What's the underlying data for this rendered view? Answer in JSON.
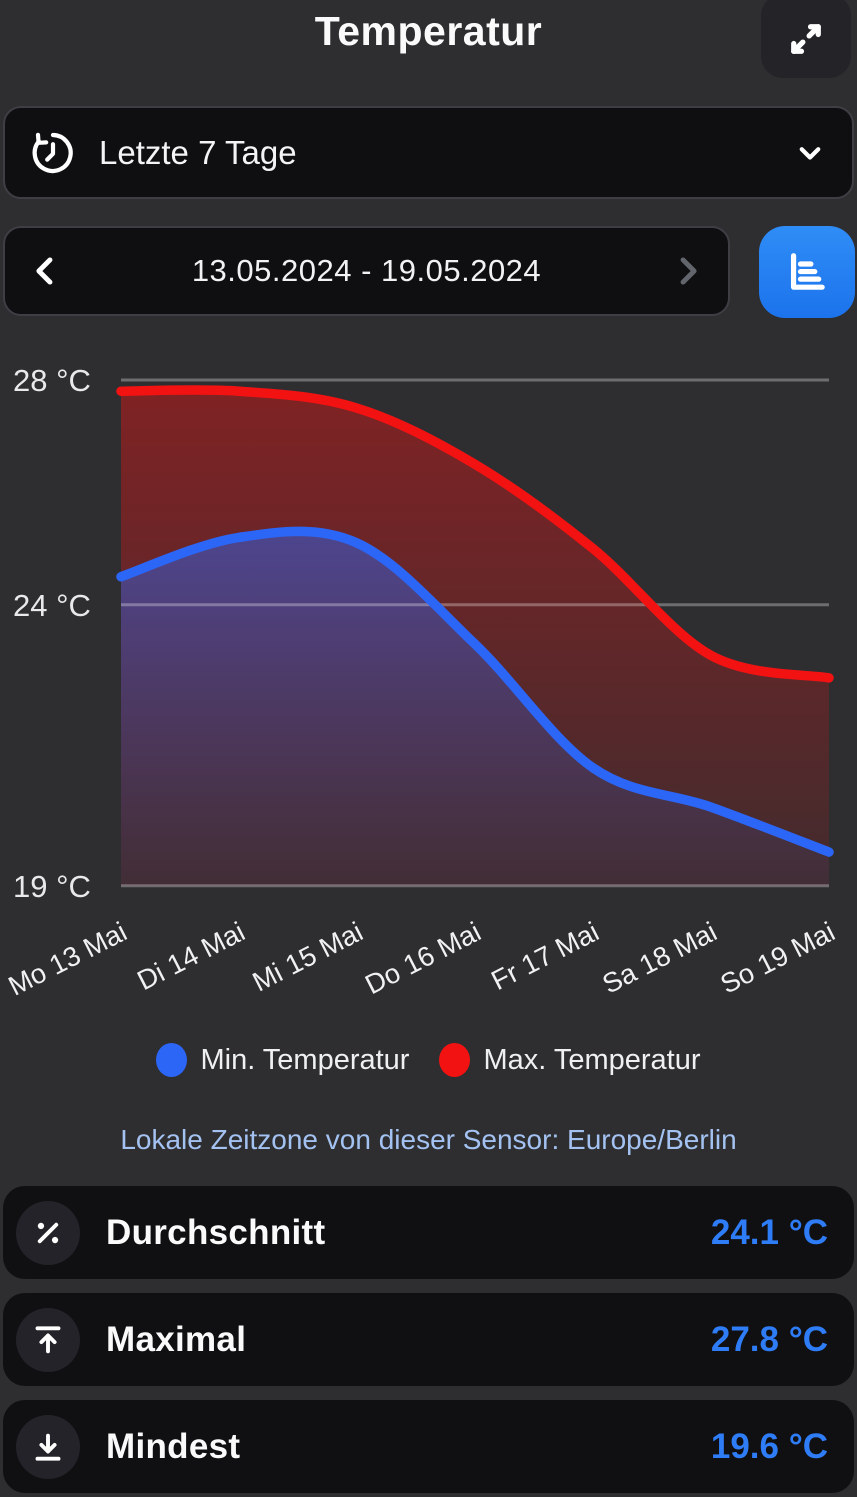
{
  "header": {
    "title": "Temperatur"
  },
  "range_selector": {
    "label": "Letzte 7 Tage"
  },
  "date_nav": {
    "range": "13.05.2024 - 19.05.2024"
  },
  "timezone_note": "Lokale Zeitzone von dieser Sensor: Europe/Berlin",
  "chart_data": {
    "type": "area",
    "categories": [
      "Mo 13 Mai",
      "Di 14 Mai",
      "Mi 15 Mai",
      "Do 16 Mai",
      "Fr 17 Mai",
      "Sa 18 Mai",
      "So 19 Mai"
    ],
    "series": [
      {
        "name": "Min. Temperatur",
        "color": "#2b66f6",
        "values": [
          24.5,
          25.2,
          25.1,
          23.3,
          21.1,
          20.4,
          19.6
        ]
      },
      {
        "name": "Max. Temperatur",
        "color": "#f31212",
        "values": [
          27.8,
          27.8,
          27.5,
          26.5,
          25.0,
          23.1,
          22.7
        ]
      }
    ],
    "yticks": [
      {
        "label": "28 °C",
        "value": 28
      },
      {
        "label": "24 °C",
        "value": 24
      },
      {
        "label": "19 °C",
        "value": 19
      }
    ],
    "ylabel": "",
    "xlabel": "",
    "ylim": [
      19,
      28.5
    ],
    "grid": "horizontal",
    "legend_position": "bottom"
  },
  "stats": [
    {
      "label": "Durchschnitt",
      "value": "24.1 °C",
      "icon": "percent-icon"
    },
    {
      "label": "Maximal",
      "value": "27.8 °C",
      "icon": "arrow-up-to-line-icon"
    },
    {
      "label": "Mindest",
      "value": "19.6 °C",
      "icon": "arrow-down-to-line-icon"
    }
  ],
  "colors": {
    "background": "#2e2e31",
    "panel": "#0f0f12",
    "panel_border": "#3e3e44",
    "accent_blue": "#2e7cf6",
    "button_blue": "#2383f2",
    "series_min": "#2b66f6",
    "series_max": "#f31212",
    "timezone_text": "#a4c2f1",
    "disabled_chevron": "#62666c"
  }
}
